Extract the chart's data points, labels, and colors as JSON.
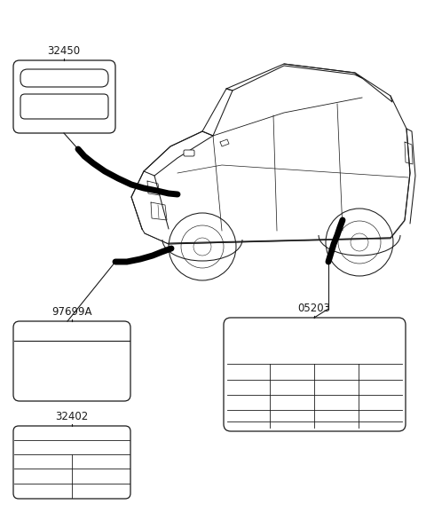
{
  "bg_color": "#ffffff",
  "line_color": "#1a1a1a",
  "label_32450": "32450",
  "label_97699A": "97699A",
  "label_32402": "32402",
  "label_05203": "05203",
  "label_fontsize": 8.5,
  "figw": 4.8,
  "figh": 5.77,
  "dpi": 100
}
